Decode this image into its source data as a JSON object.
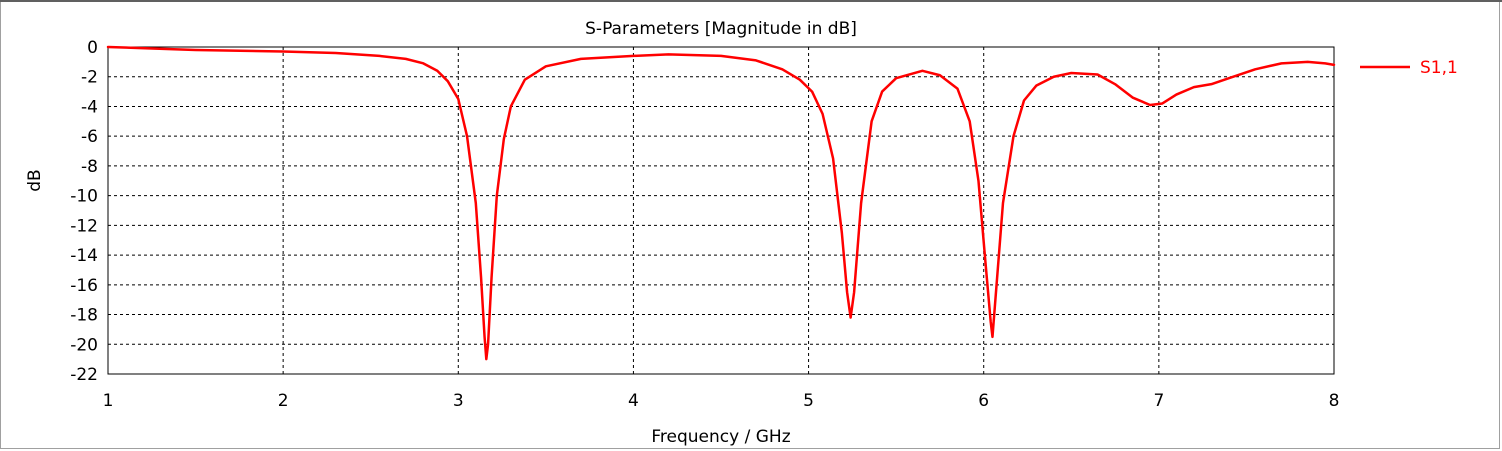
{
  "chart_data": {
    "type": "line",
    "title": "S-Parameters [Magnitude in dB]",
    "xlabel": "Frequency / GHz",
    "ylabel": "dB",
    "xlim": [
      1,
      8
    ],
    "ylim": [
      -22,
      0
    ],
    "x_ticks": [
      "1",
      "2",
      "3",
      "4",
      "5",
      "6",
      "7",
      "8"
    ],
    "y_ticks": [
      "0",
      "-2",
      "-4",
      "-6",
      "-8",
      "-10",
      "-12",
      "-14",
      "-16",
      "-18",
      "-20",
      "-22"
    ],
    "grid": true,
    "legend_position": "right",
    "series": [
      {
        "name": "S1,1",
        "color": "#ff0000",
        "points": [
          [
            1.0,
            0.0
          ],
          [
            1.5,
            -0.2
          ],
          [
            2.0,
            -0.3
          ],
          [
            2.3,
            -0.4
          ],
          [
            2.55,
            -0.6
          ],
          [
            2.7,
            -0.8
          ],
          [
            2.8,
            -1.1
          ],
          [
            2.88,
            -1.6
          ],
          [
            2.94,
            -2.3
          ],
          [
            3.0,
            -3.5
          ],
          [
            3.05,
            -6.0
          ],
          [
            3.1,
            -10.5
          ],
          [
            3.13,
            -15.5
          ],
          [
            3.15,
            -19.5
          ],
          [
            3.16,
            -21.0
          ],
          [
            3.17,
            -20.0
          ],
          [
            3.19,
            -15.5
          ],
          [
            3.22,
            -10.0
          ],
          [
            3.26,
            -6.2
          ],
          [
            3.3,
            -4.0
          ],
          [
            3.38,
            -2.2
          ],
          [
            3.5,
            -1.3
          ],
          [
            3.7,
            -0.8
          ],
          [
            4.0,
            -0.6
          ],
          [
            4.2,
            -0.5
          ],
          [
            4.5,
            -0.6
          ],
          [
            4.7,
            -0.9
          ],
          [
            4.85,
            -1.5
          ],
          [
            4.95,
            -2.2
          ],
          [
            5.02,
            -3.0
          ],
          [
            5.08,
            -4.5
          ],
          [
            5.14,
            -7.5
          ],
          [
            5.19,
            -12.5
          ],
          [
            5.22,
            -16.5
          ],
          [
            5.24,
            -18.2
          ],
          [
            5.26,
            -16.5
          ],
          [
            5.3,
            -10.5
          ],
          [
            5.36,
            -5.0
          ],
          [
            5.42,
            -3.0
          ],
          [
            5.5,
            -2.1
          ],
          [
            5.65,
            -1.6
          ],
          [
            5.75,
            -1.9
          ],
          [
            5.85,
            -2.8
          ],
          [
            5.92,
            -5.0
          ],
          [
            5.97,
            -9.0
          ],
          [
            6.01,
            -14.5
          ],
          [
            6.04,
            -18.5
          ],
          [
            6.05,
            -19.5
          ],
          [
            6.07,
            -16.5
          ],
          [
            6.11,
            -10.5
          ],
          [
            6.17,
            -6.0
          ],
          [
            6.23,
            -3.6
          ],
          [
            6.3,
            -2.6
          ],
          [
            6.4,
            -2.0
          ],
          [
            6.5,
            -1.75
          ],
          [
            6.65,
            -1.85
          ],
          [
            6.75,
            -2.5
          ],
          [
            6.85,
            -3.4
          ],
          [
            6.95,
            -3.9
          ],
          [
            7.02,
            -3.8
          ],
          [
            7.1,
            -3.2
          ],
          [
            7.2,
            -2.7
          ],
          [
            7.3,
            -2.5
          ],
          [
            7.4,
            -2.1
          ],
          [
            7.55,
            -1.5
          ],
          [
            7.7,
            -1.1
          ],
          [
            7.85,
            -1.0
          ],
          [
            7.95,
            -1.1
          ],
          [
            8.0,
            -1.2
          ]
        ]
      }
    ]
  }
}
